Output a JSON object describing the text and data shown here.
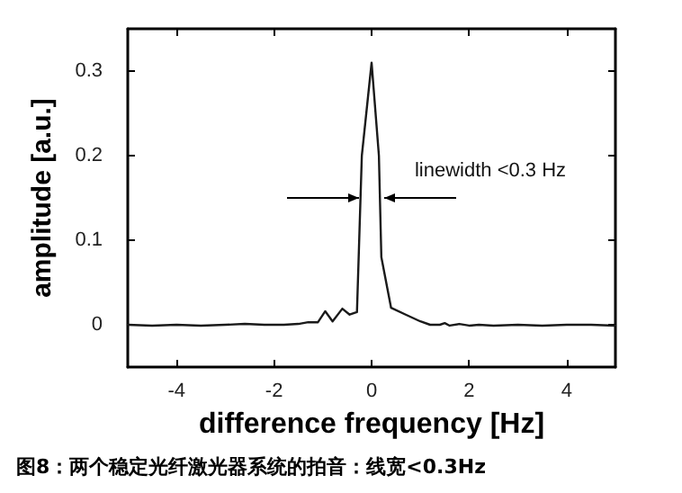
{
  "chart_data": {
    "type": "line",
    "title": "图8：两个稳定光纤激光器系统的拍音：线宽<0.3Hz",
    "xlabel": "difference frequency [Hz]",
    "ylabel": "amplitude [a.u.]",
    "x": [
      -5,
      -4.5,
      -4,
      -3.5,
      -3,
      -2.6,
      -2.2,
      -1.8,
      -1.5,
      -1.3,
      -1.1,
      -0.95,
      -0.8,
      -0.6,
      -0.45,
      -0.3,
      -0.2,
      0,
      0.15,
      0.2,
      0.4,
      0.7,
      1,
      1.2,
      1.4,
      1.5,
      1.6,
      1.8,
      2,
      2.2,
      2.5,
      3,
      3.5,
      4,
      4.5,
      5
    ],
    "series": [
      {
        "color": "#1a1a1a",
        "values": [
          0,
          -0.001,
          0,
          -0.001,
          0,
          0.001,
          0,
          0,
          0.001,
          0.003,
          0.003,
          0.016,
          0.004,
          0.019,
          0.012,
          0.015,
          0.2,
          0.31,
          0.2,
          0.08,
          0.02,
          0.012,
          0.004,
          0,
          0,
          0.002,
          -0.001,
          0.001,
          -0.001,
          0,
          -0.001,
          0,
          -0.001,
          0,
          0,
          -0.001
        ]
      }
    ],
    "xlim": [
      -5,
      5
    ],
    "xticks": [
      -4,
      -2,
      0,
      2,
      4
    ],
    "ylim": [
      -0.05,
      0.35
    ],
    "yticks": [
      0,
      0.1,
      0.2,
      0.3
    ],
    "annotations": [
      {
        "text": "linewidth <0.3 Hz",
        "x": 0,
        "y": 0.15
      }
    ],
    "grid": false,
    "marker": "none",
    "line_style": "solid"
  }
}
